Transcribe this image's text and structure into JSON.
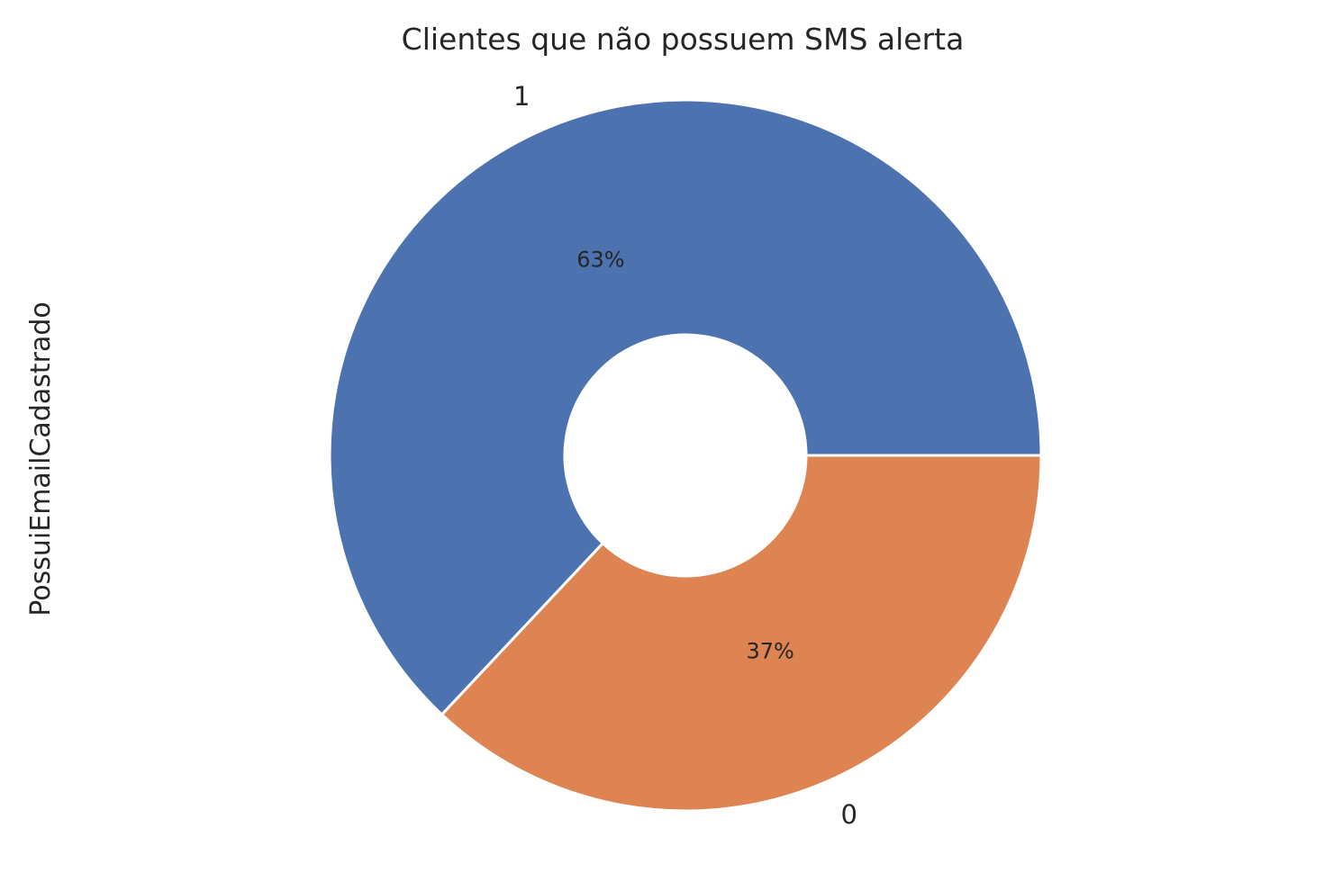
{
  "chart_data": {
    "type": "pie",
    "donut": true,
    "title": "Clientes que não possuem SMS alerta",
    "ylabel": "PossuiEmailCadastrado",
    "categories": [
      "1",
      "0"
    ],
    "values": [
      63,
      37
    ],
    "percent_labels": [
      "63%",
      "37%"
    ],
    "colors": [
      "#4c72b0",
      "#dd8452"
    ],
    "start_angle_deg": 0,
    "direction": "counterclockwise"
  }
}
